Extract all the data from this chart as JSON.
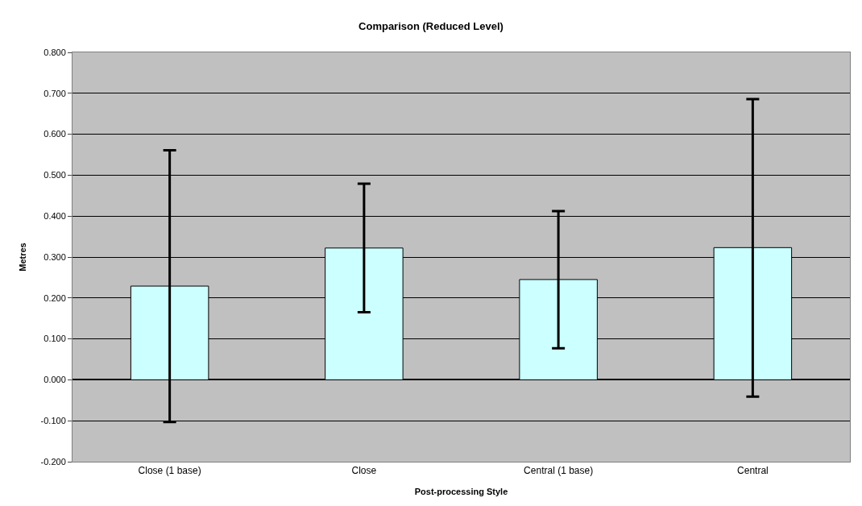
{
  "chart_data": {
    "type": "bar",
    "title": "Comparison (Reduced Level)",
    "xlabel": "Post-processing Style",
    "ylabel": "Metres",
    "categories": [
      "Close (1 base)",
      "Close",
      "Central (1 base)",
      "Central"
    ],
    "values": [
      0.229,
      0.322,
      0.245,
      0.323
    ],
    "errors": [
      [
        -0.103,
        0.561
      ],
      [
        0.165,
        0.479
      ],
      [
        0.077,
        0.412
      ],
      [
        -0.041,
        0.686
      ]
    ],
    "color": "#ccffff",
    "ylim": [
      -0.2,
      0.8
    ],
    "yticks": [
      {
        "value": -0.2,
        "label": "-0.200"
      },
      {
        "value": -0.1,
        "label": "-0.100"
      },
      {
        "value": 0,
        "label": "0.000"
      },
      {
        "value": 0.1,
        "label": "0.100"
      },
      {
        "value": 0.2,
        "label": "0.200"
      },
      {
        "value": 0.3,
        "label": "0.300"
      },
      {
        "value": 0.4,
        "label": "0.400"
      },
      {
        "value": 0.5,
        "label": "0.500"
      },
      {
        "value": 0.6,
        "label": "0.600"
      },
      {
        "value": 0.7,
        "label": "0.700"
      },
      {
        "value": 0.8,
        "label": "0.800"
      }
    ],
    "grid": "y"
  }
}
